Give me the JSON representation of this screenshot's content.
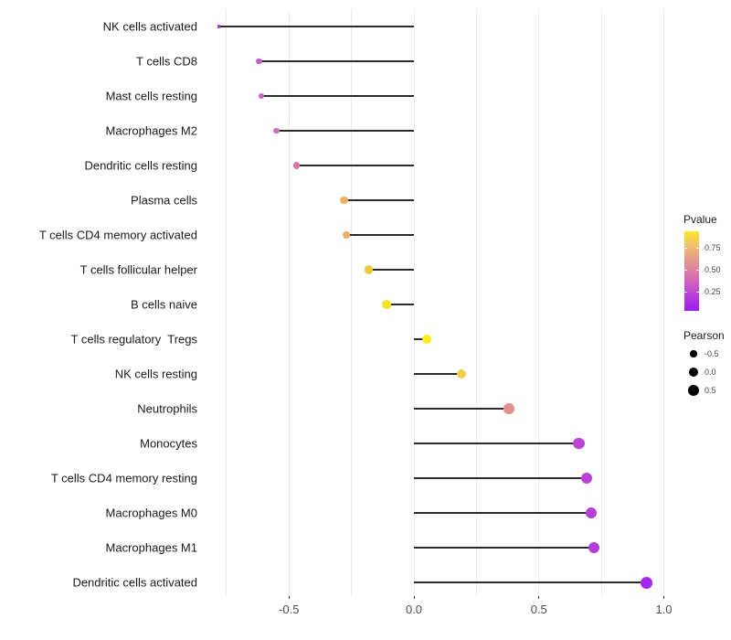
{
  "chart_data": {
    "type": "scatter",
    "variant": "lollipop",
    "title": "",
    "xlabel": "",
    "ylabel": "",
    "xlim": [
      -0.79,
      1.04
    ],
    "grid": true,
    "legend_position": "right",
    "x_ticks": [
      {
        "value": -0.5,
        "label": "-0.5"
      },
      {
        "value": 0.0,
        "label": "0.0"
      },
      {
        "value": 0.5,
        "label": "0.5"
      },
      {
        "value": 1.0,
        "label": "1.0"
      }
    ],
    "grid_values": [
      -0.75,
      -0.5,
      -0.25,
      0.0,
      0.25,
      0.5,
      0.75,
      1.0
    ],
    "points": [
      {
        "label": "NK cells activated",
        "pearson": -0.78,
        "color": "#9b2fd0"
      },
      {
        "label": "T cells CD8",
        "pearson": -0.62,
        "color": "#c75fc6"
      },
      {
        "label": "Mast cells resting",
        "pearson": -0.61,
        "color": "#c763c3"
      },
      {
        "label": "Macrophages M2",
        "pearson": -0.55,
        "color": "#ce6cc0"
      },
      {
        "label": "Dendritic cells resting",
        "pearson": -0.47,
        "color": "#d877a5"
      },
      {
        "label": "Plasma cells",
        "pearson": -0.28,
        "color": "#ecb166"
      },
      {
        "label": "T cells CD4 memory activated",
        "pearson": -0.27,
        "color": "#ecac60"
      },
      {
        "label": "T cells follicular helper",
        "pearson": -0.18,
        "color": "#eec83e"
      },
      {
        "label": "B cells naive",
        "pearson": -0.11,
        "color": "#f4e22a"
      },
      {
        "label": "T cells regulatory  Tregs",
        "pearson": 0.05,
        "color": "#f9ec1d"
      },
      {
        "label": "NK cells resting",
        "pearson": 0.19,
        "color": "#f0cd4b"
      },
      {
        "label": "Neutrophils",
        "pearson": 0.38,
        "color": "#e2938f"
      },
      {
        "label": "Monocytes",
        "pearson": 0.66,
        "color": "#bb44d0"
      },
      {
        "label": "T cells CD4 memory resting",
        "pearson": 0.69,
        "color": "#b841d3"
      },
      {
        "label": "Macrophages M0",
        "pearson": 0.71,
        "color": "#b53ed5"
      },
      {
        "label": "Macrophages M1",
        "pearson": 0.72,
        "color": "#b23cd7"
      },
      {
        "label": "Dendritic cells activated",
        "pearson": 0.93,
        "color": "#a228ee"
      }
    ],
    "legends": {
      "pvalue": {
        "title": "Pvalue",
        "range": [
          0.03,
          0.94
        ],
        "ticks": [
          {
            "value": 0.75,
            "label": "0.75"
          },
          {
            "value": 0.5,
            "label": "0.50"
          },
          {
            "value": 0.25,
            "label": "0.25"
          }
        ],
        "gradient_top_to_bottom": [
          "#f9e721",
          "#f2c469",
          "#e79e87",
          "#dd7fa5",
          "#cc5cc4",
          "#b43ae0",
          "#9c1df0"
        ]
      },
      "pearson": {
        "title": "Pearson",
        "dot_color": "#000000",
        "items": [
          {
            "value": -0.5,
            "label": "-0.5"
          },
          {
            "value": 0.0,
            "label": "0.0"
          },
          {
            "value": 0.5,
            "label": "0.5"
          }
        ]
      }
    }
  }
}
